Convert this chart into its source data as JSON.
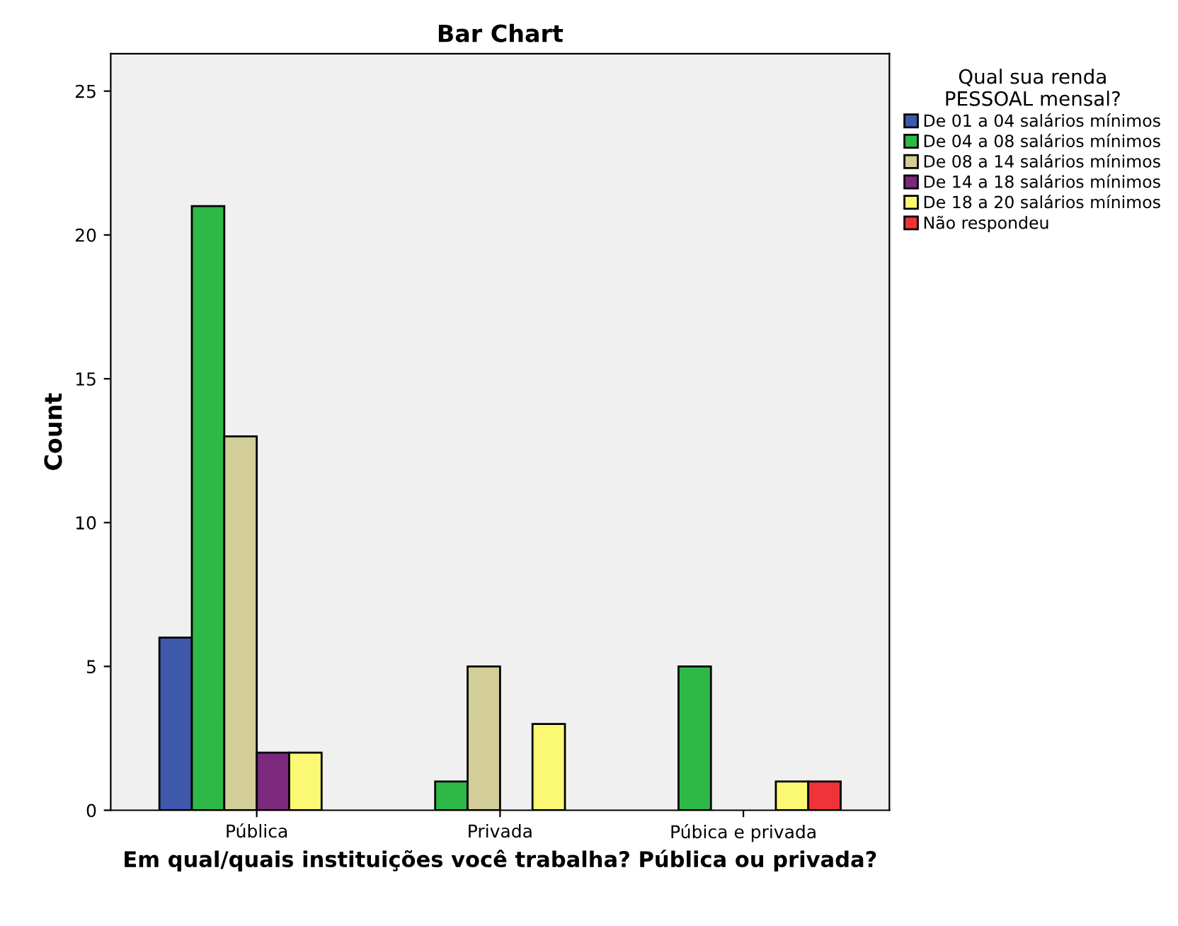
{
  "chart_data": {
    "type": "bar",
    "title": "Bar Chart",
    "xlabel": "Em qual/quais instituições você trabalha? Pública ou privada?",
    "ylabel": "Count",
    "legend_title": "Qual sua renda\nPESSOAL mensal?",
    "legend": "right",
    "categories": [
      "Pública",
      "Privada",
      "Púbica e privada"
    ],
    "series": [
      {
        "name": "De 01 a 04 salários mínimos",
        "color": "#3e58ac",
        "values": [
          6,
          null,
          null
        ]
      },
      {
        "name": "De 04 a 08 salários mínimos",
        "color": "#2eb848",
        "values": [
          21,
          1,
          5
        ]
      },
      {
        "name": "De 08 a 14 salários mínimos",
        "color": "#d3ce97",
        "values": [
          13,
          5,
          null
        ]
      },
      {
        "name": "De 14 a 18 salários mínimos",
        "color": "#7c287d",
        "values": [
          2,
          null,
          null
        ]
      },
      {
        "name": "De 18 a 20 salários mínimos",
        "color": "#fbf873",
        "values": [
          2,
          3,
          1
        ]
      },
      {
        "name": "Não respondeu",
        "color": "#ef3338",
        "values": [
          null,
          null,
          1
        ]
      }
    ],
    "ylim": [
      0,
      26.3
    ],
    "yticks": [
      0,
      5,
      10,
      15,
      20,
      25
    ],
    "grid": false
  }
}
